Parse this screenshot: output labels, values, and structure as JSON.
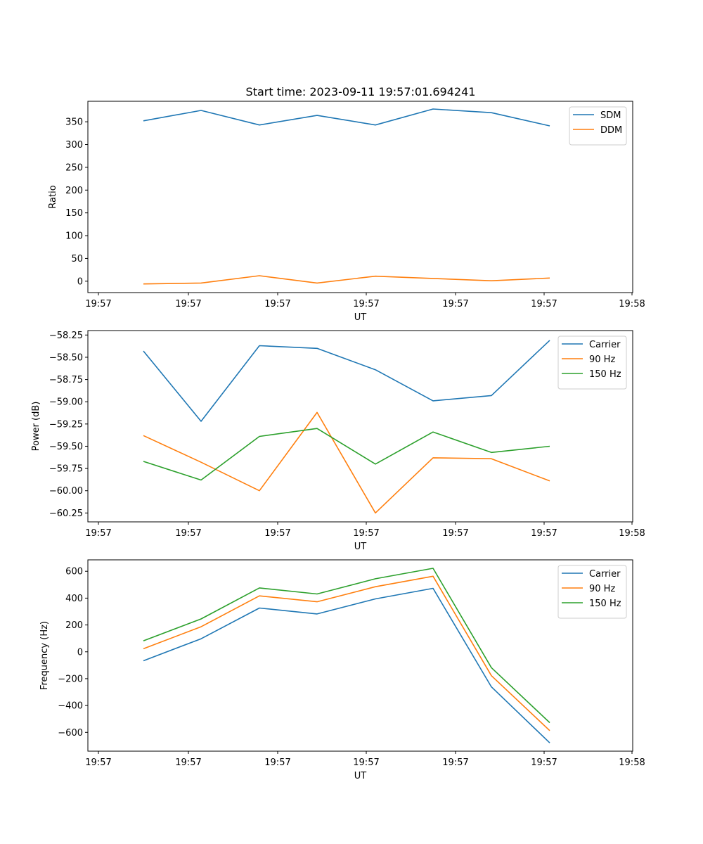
{
  "figure": {
    "title": "Start time: 2023-09-11 19:57:01.694241",
    "colors": {
      "blue": "#1f77b4",
      "orange": "#ff7f0e",
      "green": "#2ca02c"
    }
  },
  "chart_data": [
    {
      "type": "line",
      "title": "Start time: 2023-09-11 19:57:01.694241",
      "xlabel": "UT",
      "ylabel": "Ratio",
      "x_tick_labels": [
        "19:57",
        "19:57",
        "19:57",
        "19:57",
        "19:57",
        "19:57",
        "19:58"
      ],
      "y_ticks": [
        0,
        50,
        100,
        150,
        200,
        250,
        300,
        350
      ],
      "ylim": [
        -25,
        395
      ],
      "x": [
        1,
        2,
        3,
        4,
        5,
        6,
        7,
        8
      ],
      "legend_position": "top-right",
      "series": [
        {
          "name": "SDM",
          "color": "#1f77b4",
          "values": [
            352,
            375,
            343,
            364,
            343,
            378,
            370,
            341
          ]
        },
        {
          "name": "DDM",
          "color": "#ff7f0e",
          "values": [
            -6,
            -4,
            12,
            -4,
            11,
            6,
            1,
            7
          ]
        }
      ]
    },
    {
      "type": "line",
      "title": "",
      "xlabel": "UT",
      "ylabel": "Power (dB)",
      "x_tick_labels": [
        "19:57",
        "19:57",
        "19:57",
        "19:57",
        "19:57",
        "19:57",
        "19:58"
      ],
      "y_ticks": [
        -60.25,
        -60.0,
        -59.75,
        -59.5,
        -59.25,
        -59.0,
        -58.75,
        -58.5,
        -58.25
      ],
      "y_tick_labels": [
        "−60.25",
        "−60.00",
        "−59.75",
        "−59.50",
        "−59.25",
        "−59.00",
        "−58.75",
        "−58.50",
        "−58.25"
      ],
      "ylim": [
        -60.35,
        -58.2
      ],
      "x": [
        1,
        2,
        3,
        4,
        5,
        6,
        7,
        8
      ],
      "legend_position": "top-right",
      "series": [
        {
          "name": "Carrier",
          "color": "#1f77b4",
          "values": [
            -58.43,
            -59.22,
            -58.37,
            -58.4,
            -58.64,
            -58.99,
            -58.93,
            -58.31
          ]
        },
        {
          "name": "90 Hz",
          "color": "#ff7f0e",
          "values": [
            -59.38,
            -59.68,
            -60.0,
            -59.12,
            -60.25,
            -59.63,
            -59.64,
            -59.89
          ]
        },
        {
          "name": "150 Hz",
          "color": "#2ca02c",
          "values": [
            -59.67,
            -59.88,
            -59.39,
            -59.3,
            -59.7,
            -59.34,
            -59.57,
            -59.5
          ]
        }
      ]
    },
    {
      "type": "line",
      "title": "",
      "xlabel": "UT",
      "ylabel": "Frequency (Hz)",
      "x_tick_labels": [
        "19:57",
        "19:57",
        "19:57",
        "19:57",
        "19:57",
        "19:57",
        "19:58"
      ],
      "y_ticks": [
        -600,
        -400,
        -200,
        0,
        200,
        400,
        600
      ],
      "y_tick_labels": [
        "−600",
        "−400",
        "−200",
        "0",
        "200",
        "400",
        "600"
      ],
      "ylim": [
        -740,
        685
      ],
      "x": [
        1,
        2,
        3,
        4,
        5,
        6,
        7,
        8
      ],
      "legend_position": "top-right",
      "series": [
        {
          "name": "Carrier",
          "color": "#1f77b4",
          "values": [
            -67,
            97,
            326,
            282,
            394,
            473,
            -261,
            -678
          ]
        },
        {
          "name": "90 Hz",
          "color": "#ff7f0e",
          "values": [
            23,
            187,
            417,
            373,
            485,
            563,
            -178,
            -587
          ]
        },
        {
          "name": "150 Hz",
          "color": "#2ca02c",
          "values": [
            82,
            245,
            476,
            431,
            544,
            622,
            -118,
            -528
          ]
        }
      ]
    }
  ]
}
